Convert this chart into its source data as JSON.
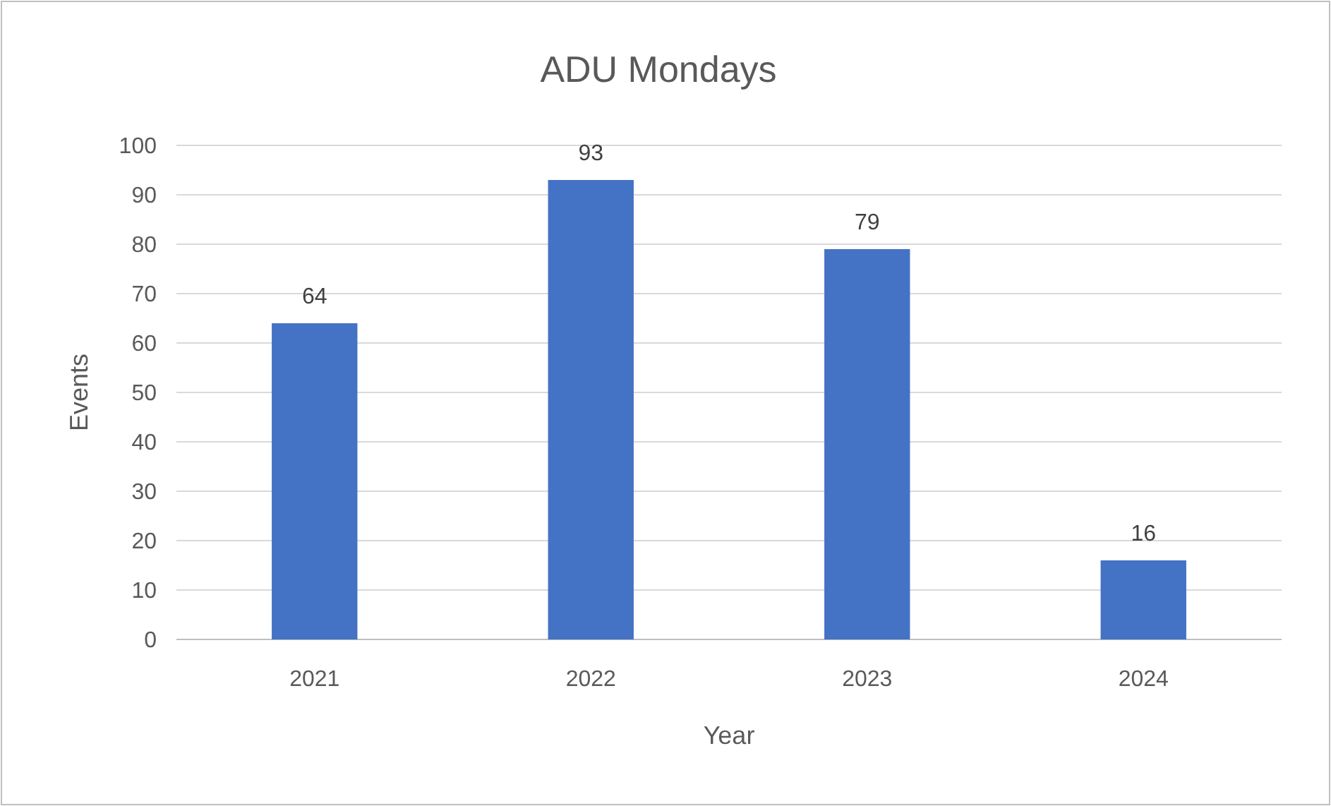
{
  "chart_data": {
    "type": "bar",
    "title": "ADU Mondays",
    "xlabel": "Year",
    "ylabel": "Events",
    "categories": [
      "2021",
      "2022",
      "2023",
      "2024"
    ],
    "series": [
      {
        "color": "#4472c4",
        "values": [
          64,
          93,
          79,
          16
        ]
      }
    ],
    "ylim": [
      0,
      100
    ],
    "yticks": [
      0,
      10,
      20,
      30,
      40,
      50,
      60,
      70,
      80,
      90,
      100
    ],
    "grid": "y",
    "data_labels": true
  }
}
